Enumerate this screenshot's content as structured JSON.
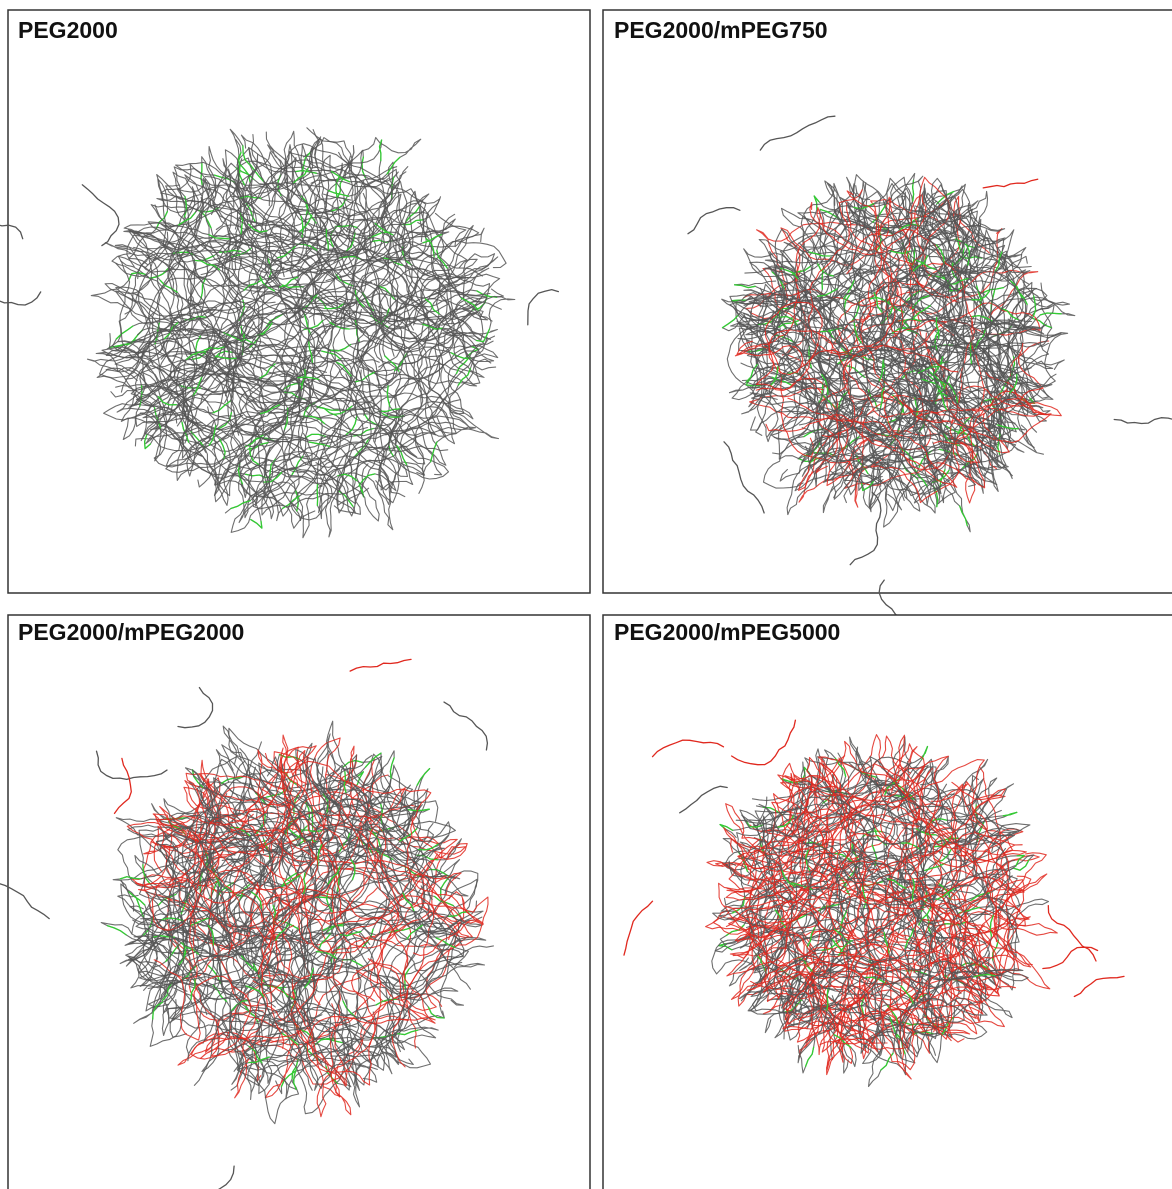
{
  "panels": [
    {
      "title": "PEG2000"
    },
    {
      "title": "PEG2000/mPEG750"
    },
    {
      "title": "PEG2000/mPEG2000"
    },
    {
      "title": "PEG2000/mPEG5000"
    }
  ]
}
